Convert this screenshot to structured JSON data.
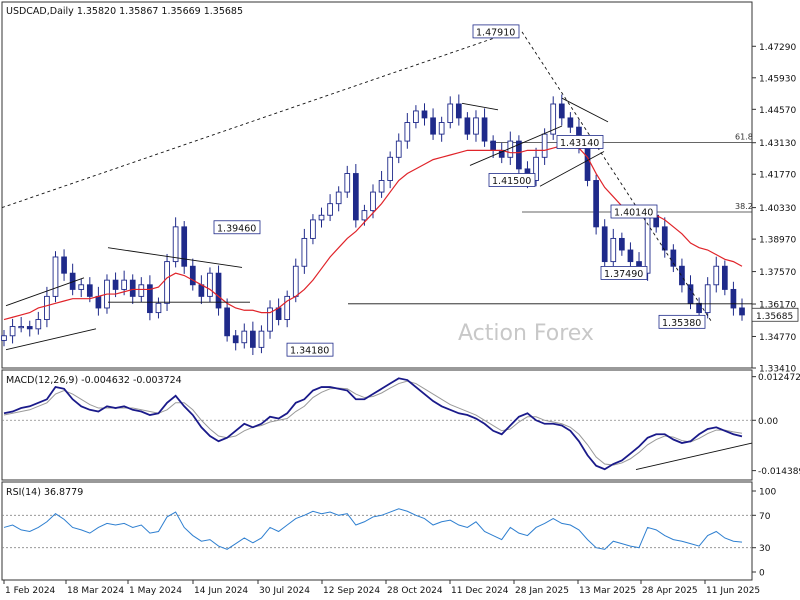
{
  "header": {
    "main_title": "USDCAD,Daily  1.35820 1.35867 1.35669 1.35685",
    "macd_title": "MACD(12,26,9) -0.004632 -0.003724",
    "rsi_title": "RSI(14) 36.8779"
  },
  "watermark": "Action Forex",
  "colors": {
    "candle": "#1f2a8a",
    "ma": "#e0242a",
    "macd": "#1a1a8a",
    "signal": "#9a9a9a",
    "rsi": "#2e7fd0",
    "grid_border": "#333333"
  },
  "chart_data": [
    {
      "type": "candlestick",
      "series": [
        {
          "name": "USDCAD price",
          "values": [
            1.348,
            1.352,
            1.352,
            1.351,
            1.355,
            1.365,
            1.382,
            1.375,
            1.368,
            1.37,
            1.365,
            1.36,
            1.372,
            1.368,
            1.372,
            1.365,
            1.37,
            1.358,
            1.362,
            1.38,
            1.395,
            1.378,
            1.37,
            1.365,
            1.375,
            1.36,
            1.348,
            1.345,
            1.35,
            1.343,
            1.35,
            1.36,
            1.355,
            1.365,
            1.378,
            1.39,
            1.398,
            1.4,
            1.405,
            1.41,
            1.418,
            1.398,
            1.402,
            1.41,
            1.415,
            1.425,
            1.432,
            1.44,
            1.445,
            1.442,
            1.435,
            1.44,
            1.448,
            1.442,
            1.435,
            1.442,
            1.432,
            1.428,
            1.425,
            1.432,
            1.42,
            1.415,
            1.425,
            1.435,
            1.448,
            1.442,
            1.438,
            1.43,
            1.415,
            1.395,
            1.38,
            1.39,
            1.385,
            1.38,
            1.375,
            1.4,
            1.395,
            1.385,
            1.378,
            1.37,
            1.362,
            1.358,
            1.37,
            1.378,
            1.368,
            1.36,
            1.357
          ]
        },
        {
          "name": "Moving average",
          "values": [
            1.355,
            1.356,
            1.357,
            1.358,
            1.36,
            1.361,
            1.362,
            1.363,
            1.364,
            1.364,
            1.364,
            1.365,
            1.366,
            1.366,
            1.367,
            1.368,
            1.368,
            1.368,
            1.369,
            1.373,
            1.375,
            1.374,
            1.372,
            1.37,
            1.368,
            1.365,
            1.362,
            1.36,
            1.359,
            1.359,
            1.358,
            1.358,
            1.36,
            1.363,
            1.365,
            1.368,
            1.372,
            1.377,
            1.382,
            1.386,
            1.39,
            1.393,
            1.397,
            1.401,
            1.405,
            1.41,
            1.415,
            1.418,
            1.42,
            1.422,
            1.424,
            1.425,
            1.426,
            1.427,
            1.428,
            1.428,
            1.428,
            1.428,
            1.428,
            1.427,
            1.427,
            1.428,
            1.428,
            1.428,
            1.429,
            1.43,
            1.43,
            1.429,
            1.425,
            1.418,
            1.412,
            1.408,
            1.404,
            1.402,
            1.401,
            1.401,
            1.4,
            1.398,
            1.395,
            1.392,
            1.388,
            1.386,
            1.385,
            1.383,
            1.381,
            1.38,
            1.378
          ]
        }
      ],
      "x_tick_labels": [
        "1 Feb 2024",
        "18 Mar 2024",
        "1 May 2024",
        "14 Jun 2024",
        "30 Jul 2024",
        "12 Sep 2024",
        "28 Oct 2024",
        "11 Dec 2024",
        "28 Jan 2025",
        "13 Mar 2025",
        "28 Apr 2025",
        "11 Jun 2025"
      ],
      "y_tick_labels": [
        "1.47290",
        "1.45930",
        "1.44570",
        "1.43130",
        "1.41770",
        "1.40330",
        "1.38970",
        "1.37570",
        "1.36170",
        "1.34770",
        "1.33410"
      ],
      "ylim": [
        1.3341,
        1.4851
      ],
      "current_price_label": "1.35685",
      "current_price": 1.35685,
      "annotations": [
        {
          "text": "1.47910",
          "value": 1.4791
        },
        {
          "text": "1.39460",
          "value": 1.3946
        },
        {
          "text": "1.41500",
          "value": 1.415
        },
        {
          "text": "1.43140",
          "value": 1.4314
        },
        {
          "text": "1.40140",
          "value": 1.4014
        },
        {
          "text": "1.37490",
          "value": 1.3749
        },
        {
          "text": "1.34180",
          "value": 1.3418
        },
        {
          "text": "1.35380",
          "value": 1.3538
        }
      ],
      "fib_levels": [
        {
          "label": "61.8",
          "value": 1.4314
        },
        {
          "label": "38.2",
          "value": 1.4014
        }
      ]
    },
    {
      "type": "line",
      "title": "MACD(12,26,9) -0.004632 -0.003724",
      "series": [
        {
          "name": "MACD",
          "values": [
            0.002,
            0.0025,
            0.0035,
            0.004,
            0.005,
            0.006,
            0.0095,
            0.009,
            0.006,
            0.004,
            0.003,
            0.0025,
            0.004,
            0.0035,
            0.004,
            0.003,
            0.0025,
            0.0015,
            0.002,
            0.005,
            0.007,
            0.004,
            0.0015,
            -0.002,
            -0.0045,
            -0.006,
            -0.005,
            -0.003,
            -0.001,
            -0.002,
            -0.001,
            0.001,
            0.0005,
            0.002,
            0.005,
            0.006,
            0.0085,
            0.0095,
            0.0095,
            0.009,
            0.0085,
            0.006,
            0.006,
            0.0075,
            0.009,
            0.0105,
            0.012,
            0.0115,
            0.0095,
            0.0075,
            0.0055,
            0.004,
            0.003,
            0.002,
            0.0015,
            0.0005,
            -0.001,
            -0.003,
            -0.004,
            -0.0015,
            0.001,
            0.002,
            0.0,
            -0.001,
            -0.001,
            -0.0015,
            -0.003,
            -0.006,
            -0.01,
            -0.013,
            -0.014,
            -0.0125,
            -0.0115,
            -0.0095,
            -0.0075,
            -0.005,
            -0.004,
            -0.004,
            -0.0055,
            -0.0065,
            -0.006,
            -0.004,
            -0.0025,
            -0.002,
            -0.003,
            -0.004,
            -0.0046
          ]
        },
        {
          "name": "Signal",
          "values": [
            0.0015,
            0.002,
            0.0025,
            0.003,
            0.004,
            0.005,
            0.0075,
            0.0085,
            0.0075,
            0.006,
            0.0045,
            0.0035,
            0.0035,
            0.0035,
            0.0035,
            0.0035,
            0.003,
            0.0025,
            0.002,
            0.003,
            0.005,
            0.005,
            0.003,
            0.0,
            -0.0025,
            -0.0045,
            -0.005,
            -0.0045,
            -0.003,
            -0.002,
            -0.0015,
            -0.0005,
            0.0,
            0.0005,
            0.0025,
            0.004,
            0.0065,
            0.008,
            0.009,
            0.0092,
            0.009,
            0.0075,
            0.0065,
            0.0068,
            0.0078,
            0.0092,
            0.0105,
            0.0112,
            0.0105,
            0.009,
            0.0075,
            0.006,
            0.0045,
            0.0035,
            0.0025,
            0.0015,
            0.0,
            -0.0015,
            -0.003,
            -0.0025,
            -0.0005,
            0.001,
            0.001,
            0.0,
            -0.0005,
            -0.001,
            -0.002,
            -0.004,
            -0.007,
            -0.0105,
            -0.0125,
            -0.0128,
            -0.0122,
            -0.011,
            -0.0092,
            -0.007,
            -0.0055,
            -0.0045,
            -0.0048,
            -0.0058,
            -0.0062,
            -0.0052,
            -0.0038,
            -0.0028,
            -0.0028,
            -0.0033,
            -0.0037
          ]
        }
      ],
      "y_tick_labels": [
        "0.012472",
        "0.00",
        "-0.014389"
      ],
      "ylim": [
        -0.0165,
        0.0138
      ]
    },
    {
      "type": "line",
      "title": "RSI(14) 36.8779",
      "series": [
        {
          "name": "RSI(14)",
          "values": [
            55,
            58,
            52,
            50,
            55,
            62,
            72,
            65,
            55,
            52,
            48,
            55,
            60,
            58,
            60,
            55,
            58,
            48,
            50,
            68,
            74,
            55,
            45,
            38,
            40,
            32,
            28,
            35,
            42,
            36,
            42,
            55,
            50,
            58,
            66,
            70,
            75,
            72,
            74,
            70,
            72,
            58,
            62,
            68,
            70,
            74,
            78,
            75,
            70,
            66,
            58,
            62,
            64,
            58,
            55,
            62,
            50,
            45,
            40,
            55,
            48,
            45,
            55,
            60,
            66,
            60,
            58,
            52,
            40,
            30,
            28,
            38,
            35,
            32,
            30,
            55,
            52,
            45,
            40,
            38,
            35,
            32,
            45,
            50,
            42,
            38,
            36.88
          ]
        }
      ],
      "y_tick_labels": [
        "100",
        "70",
        "30",
        "0"
      ],
      "reference_levels": [
        70,
        30
      ],
      "ylim": [
        0,
        100
      ]
    }
  ]
}
